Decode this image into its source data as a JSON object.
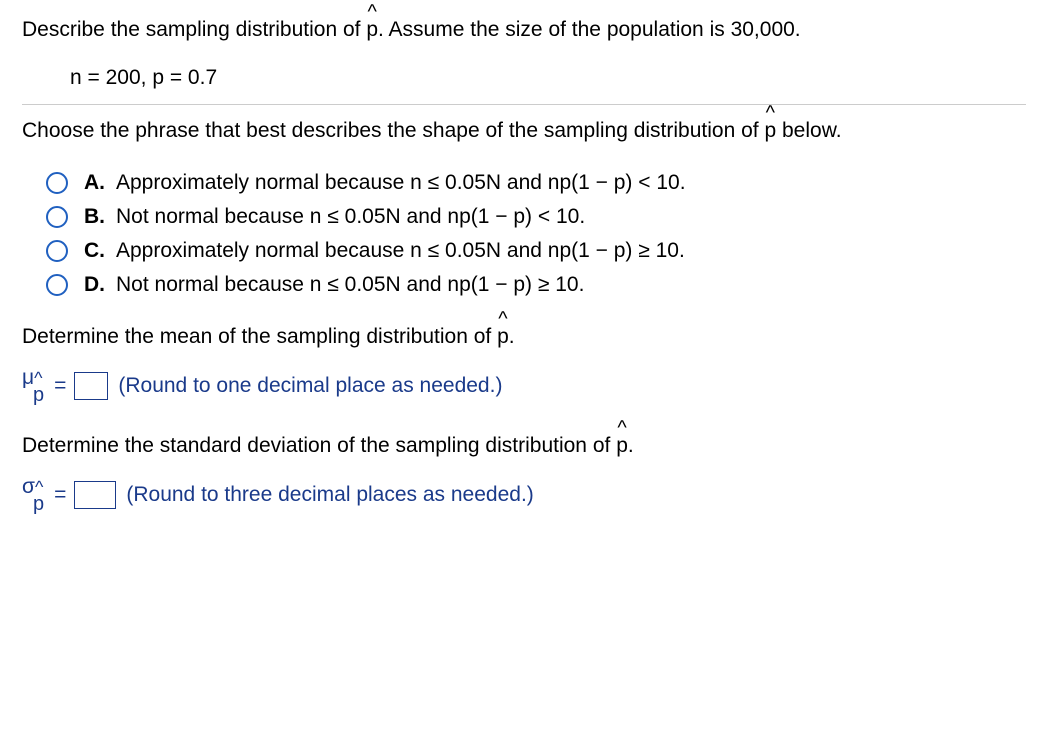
{
  "intro": {
    "prefix": "Describe the sampling distribution of ",
    "phat": "p",
    "suffix": ". Assume the size of the population is 30,000."
  },
  "params": "n = 200, p = 0.7",
  "shape_question": {
    "prefix": "Choose the phrase that best describes the shape of the sampling distribution of ",
    "phat": "p",
    "suffix": " below."
  },
  "options": [
    {
      "letter": "A.",
      "text": "Approximately normal because n ≤ 0.05N and np(1 − p) < 10."
    },
    {
      "letter": "B.",
      "text": "Not normal because n ≤ 0.05N and np(1 − p) < 10."
    },
    {
      "letter": "C.",
      "text": "Approximately normal because n ≤ 0.05N and np(1 − p) ≥ 10."
    },
    {
      "letter": "D.",
      "text": "Not normal because n ≤ 0.05N and np(1 − p) ≥ 10."
    }
  ],
  "mean_prompt": {
    "prefix": "Determine the mean of the sampling distribution of ",
    "phat": "p",
    "suffix": "."
  },
  "mean_row": {
    "symbol_main": "μ",
    "symbol_hat": "^",
    "symbol_sub": "p",
    "equals": "=",
    "hint": "(Round to one decimal place as needed.)"
  },
  "sd_prompt": {
    "prefix": "Determine the standard deviation of the sampling distribution of ",
    "phat": "p",
    "suffix": "."
  },
  "sd_row": {
    "symbol_main": "σ",
    "symbol_hat": "^",
    "symbol_sub": "p",
    "equals": "=",
    "hint": "(Round to three decimal places as needed.)"
  }
}
